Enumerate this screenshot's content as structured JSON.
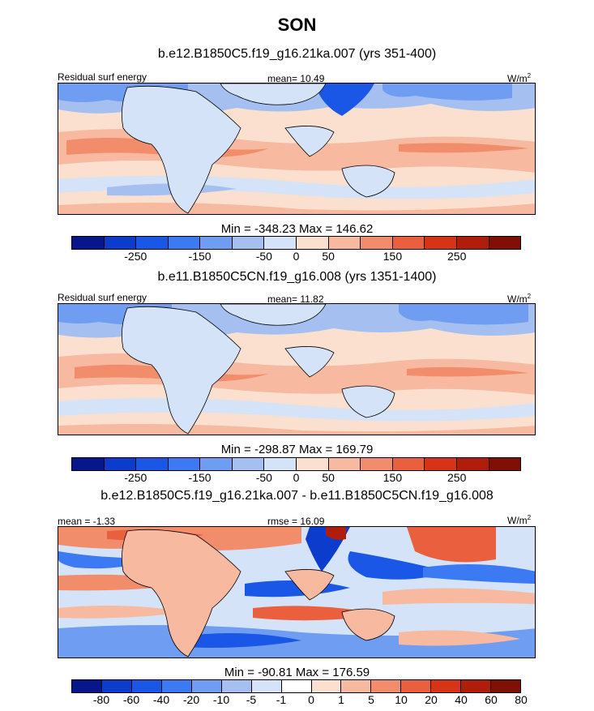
{
  "title": "SON",
  "panel1": {
    "case_title": "b.e12.B1850C5.f19_g16.21ka.007 (yrs 351-400)",
    "variable": "Residual surf energy",
    "mean_label": "mean=  10.49",
    "units": "W/m",
    "units_exp": "2",
    "minmax": "Min = -348.23 Max = 146.62"
  },
  "panel2": {
    "case_title": "b.e11.B1850C5CN.f19_g16.008 (yrs 1351-1400)",
    "variable": "Residual surf energy",
    "mean_label": "mean=  11.82",
    "units": "W/m",
    "units_exp": "2",
    "minmax": "Min = -298.87 Max = 169.79"
  },
  "panel3": {
    "case_title": "b.e12.B1850C5.f19_g16.21ka.007 - b.e11.B1850C5CN.f19_g16.008",
    "mean_label": "mean =  -1.33",
    "rmse_label": "rmse =  16.09",
    "units": "W/m",
    "units_exp": "2",
    "minmax": "Min = -90.81 Max = 176.59"
  },
  "colorbar_abs": {
    "colors": [
      "#08168c",
      "#0c3ccc",
      "#1a57e6",
      "#3b7af2",
      "#6f9df2",
      "#a5c0f0",
      "#d4e3f7",
      "#fbe0cf",
      "#f7b99f",
      "#f28d6c",
      "#ea5f3e",
      "#d73316",
      "#b01d0a",
      "#800f05"
    ],
    "tick_labels": [
      "-250",
      "-150",
      "-50",
      "0",
      "50",
      "150",
      "250"
    ],
    "tick_positions": [
      2,
      4,
      6,
      7,
      8,
      10,
      12
    ]
  },
  "colorbar_diff": {
    "colors": [
      "#08168c",
      "#0c3ccc",
      "#1a57e6",
      "#3b7af2",
      "#6f9df2",
      "#a5c0f0",
      "#d4e3f7",
      "#ffffff",
      "#fbe0cf",
      "#f7b99f",
      "#f28d6c",
      "#ea5f3e",
      "#d73316",
      "#b01d0a",
      "#800f05"
    ],
    "tick_labels": [
      "-80",
      "-60",
      "-40",
      "-20",
      "-10",
      "-5",
      "-1",
      "0",
      "1",
      "5",
      "10",
      "20",
      "40",
      "60",
      "80"
    ],
    "tick_positions": [
      1,
      2,
      3,
      4,
      5,
      6,
      7,
      8,
      9,
      10,
      11,
      12,
      13,
      14,
      15
    ]
  }
}
